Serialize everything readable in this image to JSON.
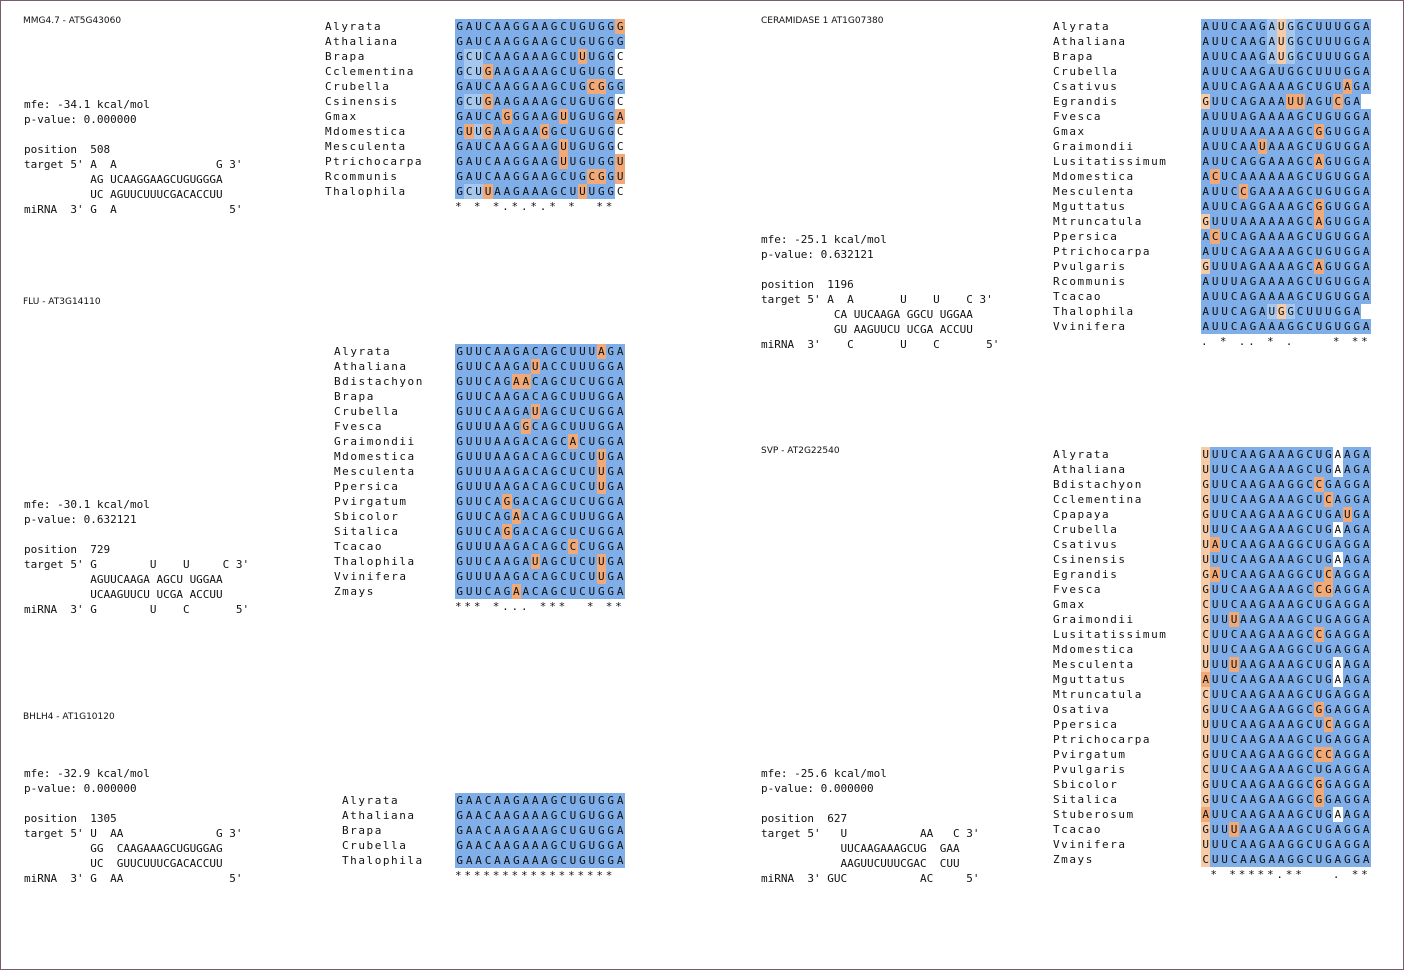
{
  "palette": {
    "b1": "#7faee8",
    "b2": "#a6c8ee",
    "b3": "#c6dcf3",
    "o1": "#f1a978",
    "o2": "#f6cba8",
    "o3": "#fbe3cd",
    "w": "#ffffff"
  },
  "panels": [
    {
      "id": "mmg",
      "title": "MMG4.7 - AT5G43060",
      "info": [
        "mfe: -34.1 kcal/mol",
        "p-value: 0.000000",
        "",
        "position  508",
        "target 5' A  A               G 3'",
        "          AG UCAAGGAAGCUGUGGGA",
        "          UC AGUUCUUUCGACACCUU",
        "miRNA  3' G  A                 5'"
      ],
      "alignment": {
        "rows": [
          {
            "name": "Alyrata",
            "seq": "GAUCAAGGAAGCUGUGGG",
            "col": "bbbbbbbbbbbbbbbbbO"
          },
          {
            "name": "Athaliana",
            "seq": "GAUCAAGGAAGCUGUGGG",
            "col": "bbbbbbbbbbbbbbbbbb"
          },
          {
            "name": "Brapa",
            "seq": "GCUCAAGAAAGCUUUGGC",
            "col": "bxxbbbbbbbbbbObbbw"
          },
          {
            "name": "Cclementina",
            "seq": "GCUGAAGAAAGCUGUGGC",
            "col": "bxxObbbbbbbbbbbbbw"
          },
          {
            "name": "Crubella",
            "seq": "GAUCAAGGAAGCUGCGGG",
            "col": "bbbbbbbbbbbbbbOObb"
          },
          {
            "name": "Csinensis",
            "seq": "GCUGAAGAAAGCUGUGGC",
            "col": "bxxObbbbbbbbbbbbbw"
          },
          {
            "name": "Gmax",
            "seq": "GAUCAGGGAAGUUGUGGA",
            "col": "bbbbbObbbbbObbbbbO"
          },
          {
            "name": "Mdomestica",
            "seq": "GUUGAAGAAGGCUGUGGC",
            "col": "bOxObbbbbObbbbbbbw"
          },
          {
            "name": "Mesculenta",
            "seq": "GAUCAAGGAAGUUGUGGC",
            "col": "bbbbbbbbbbbObbbbbw"
          },
          {
            "name": "Ptrichocarpa",
            "seq": "GAUCAAGGAAGUUGUGGU",
            "col": "bbbbbbbbbbbObbbbbO"
          },
          {
            "name": "Rcommunis",
            "seq": "GAUCAAGGAAGCUGCGGU",
            "col": "bbbbbbbbbbbbbbOObO"
          },
          {
            "name": "Thalophila",
            "seq": "GCUUAAGAAAGCUUUGGC",
            "col": "bxxObbbbbbbbbObbbw"
          }
        ],
        "consensus": "* * *.*.*.* *  **"
      }
    },
    {
      "id": "flu",
      "title": "FLU - AT3G14110",
      "info": [
        "mfe: -30.1 kcal/mol",
        "p-value: 0.632121",
        "",
        "position  729",
        "target 5' G        U    U     C 3'",
        "          AGUUCAAGA AGCU UGGAA",
        "          UCAAGUUCU UCGA ACCUU",
        "miRNA  3' G        U    C       5'"
      ],
      "alignment": {
        "rows": [
          {
            "name": "Alyrata",
            "seq": "GUUCAAGACAGCUUUAGA",
            "col": "bbbbbbbbbbbbbbbObb"
          },
          {
            "name": "Athaliana",
            "seq": "GUUCAAGAUACCUUUGGA",
            "col": "bbbbbbbbObbbbbbbbb"
          },
          {
            "name": "Bdistachyon",
            "seq": "GUUCAGAACAGCUCUGGA",
            "col": "bbbbbbOObbbbbbbbbb"
          },
          {
            "name": "Brapa",
            "seq": "GUUCAAGACAGCUUUGGA",
            "col": "bbbbbbbbbbbbbbbbbb"
          },
          {
            "name": "Crubella",
            "seq": "GUUCAAGAUAGCUCUGGA",
            "col": "bbbbbbbbObbbbbbbbb"
          },
          {
            "name": "Fvesca",
            "seq": "GUUUAAGGCAGCUUUGGA",
            "col": "bbbbbbbObbbbbbbbbb"
          },
          {
            "name": "Graimondii",
            "seq": "GUUUAAGACAGCACUGGA",
            "col": "bbbbbbbbbbbbObbbbb"
          },
          {
            "name": "Mdomestica",
            "seq": "GUUUAAGACAGCUCUUGA",
            "col": "bbbbbbbbbbbbbbbObb"
          },
          {
            "name": "Mesculenta",
            "seq": "GUUUAAGACAGCUCUUGA",
            "col": "bbbbbbbbbbbbbbbObb"
          },
          {
            "name": "Ppersica",
            "seq": "GUUUAAGACAGCUCUUGA",
            "col": "bbbbbbbbbbbbbbbObb"
          },
          {
            "name": "Pvirgatum",
            "seq": "GUUCAGGACAGCUCUGGA",
            "col": "bbbbbObbbbbbbbbbbb"
          },
          {
            "name": "Sbicolor",
            "seq": "GUUCAGAACAGCUUUGGA",
            "col": "bbbbbbObbbbbbbbbbb"
          },
          {
            "name": "Sitalica",
            "seq": "GUUCAGGACAGCUCUGGA",
            "col": "bbbbbObbbbbbbbbbbb"
          },
          {
            "name": "Tcacao",
            "seq": "GUUUAAGACAGCCCUGGA",
            "col": "bbbbbbbbbbbbObbbbb"
          },
          {
            "name": "Thalophila",
            "seq": "GUUCAAGAUAGCUCUUGA",
            "col": "bbbbbbbbObbbbbbObb"
          },
          {
            "name": "Vvinifera",
            "seq": "GUUUAAGACAGCUCUUGA",
            "col": "bbbbbbbbbbbbbbbObb"
          },
          {
            "name": "Zmays",
            "seq": "GUUCAGAACAGCUCUGGA",
            "col": "bbbbbbObbbbbbbbbbb"
          }
        ],
        "consensus": "*** *... ***  * **"
      }
    },
    {
      "id": "bhlh",
      "title": "BHLH4 - AT1G10120",
      "info": [
        "mfe: -32.9 kcal/mol",
        "p-value: 0.000000",
        "",
        "position  1305",
        "target 5' U  AA              G 3'",
        "          GG  CAAGAAAGCUGUGGAG",
        "          UC  GUUCUUUCGACACCUU",
        "miRNA  3' G  AA                5'"
      ],
      "alignment": {
        "rows": [
          {
            "name": "Alyrata",
            "seq": "GAACAAGAAAGCUGUGGA",
            "col": "bbbbbbbbbbbbbbbbbb"
          },
          {
            "name": "Athaliana",
            "seq": "GAACAAGAAAGCUGUGGA",
            "col": "bbbbbbbbbbbbbbbbbb"
          },
          {
            "name": "Brapa",
            "seq": "GAACAAGAAAGCUGUGGA",
            "col": "bbbbbbbbbbbbbbbbbb"
          },
          {
            "name": "Crubella",
            "seq": "GAACAAGAAAGCUGUGGA",
            "col": "bbbbbbbbbbbbbbbbbb"
          },
          {
            "name": "Thalophila",
            "seq": "GAACAAGAAAGCUGUGGA",
            "col": "bbbbbbbbbbbbbbbbbb"
          }
        ],
        "consensus": "*****************"
      }
    },
    {
      "id": "ceramidase",
      "title": "CERAMIDASE 1 AT1G07380",
      "info": [
        "mfe: -25.1 kcal/mol",
        "p-value: 0.632121",
        "",
        "position  1196",
        "target 5' A  A       U    U    C 3'",
        "           CA UUCAAGA GGCU UGGAA",
        "           GU AAGUUCU UCGA ACCUU",
        "miRNA  3'    C       U    C       5'"
      ],
      "alignment": {
        "rows": [
          {
            "name": "Alyrata",
            "seq": "AUUCAAGAUGGCUUUGGA",
            "col": "bbbbbbbxoxbbbbbbbb"
          },
          {
            "name": "Athaliana",
            "seq": "AUUCAAGAUGGCUUUGGA",
            "col": "bbbbbbbxoxbbbbbbbb"
          },
          {
            "name": "Brapa",
            "seq": "AUUCAAGAUGGCUUUGGA",
            "col": "bbbbbbbxoxbbbbbbbb"
          },
          {
            "name": "Crubella",
            "seq": "AUUCAAGAUGGCUUUGGA",
            "col": "bbbbbbbbbbbbbbbbbb"
          },
          {
            "name": "Csativus",
            "seq": "AUUCAGAAAAGCUGUAGA",
            "col": "bbbbbbbbbbbbbbbObb"
          },
          {
            "name": "Egrandis",
            "seq": "GUUCAGAAAUUAGUCGA",
            "col": "obbbbbbbbOObbbObb"
          },
          {
            "name": "Fvesca",
            "seq": "AUUUAGAAAAGCUGUGGA",
            "col": "bbbbbbbbbbbbbbbbbb"
          },
          {
            "name": "Gmax",
            "seq": "AUUUAAAAAAGCGGUGGA",
            "col": "bbbbbbbbbbbbObbbbb"
          },
          {
            "name": "Graimondii",
            "seq": "AUUCAAUAAAGCUGUGGA",
            "col": "bbbbbbObbbbbbbbbbb"
          },
          {
            "name": "Lusitatissimum",
            "seq": "AUUCAGGAAAGCAGUGGA",
            "col": "bbbbbbbbbbbbObbbbb"
          },
          {
            "name": "Mdomestica",
            "seq": "ACUCAAAAAAGCUGUGGA",
            "col": "bObbbbbbbbbbbbbbbb"
          },
          {
            "name": "Mesculenta",
            "seq": "AUUCCGAAAAGCUGUGGA",
            "col": "bbbbObbbbbbbbbbbbb"
          },
          {
            "name": "Mguttatus",
            "seq": "AUUCAGGAAAGCGGUGGA",
            "col": "bbbbbbbbbbbbObbbbb"
          },
          {
            "name": "Mtruncatula",
            "seq": "GUUUAAAAAAGCAGUGGA",
            "col": "obbbbbbbbbbbObbbbb"
          },
          {
            "name": "Ppersica",
            "seq": "ACUCAGAAAAGCUGUGGA",
            "col": "bObbbbbbbbbbbbbbbb"
          },
          {
            "name": "Ptrichocarpa",
            "seq": "AUUCAGAAAAGCUGUGGA",
            "col": "bbbbbbbbbbbbbbbbbb"
          },
          {
            "name": "Pvulgaris",
            "seq": "GUUUAGAAAAGCAGUGGA",
            "col": "obbbbbbbbbbbObbbbb"
          },
          {
            "name": "Rcommunis",
            "seq": "AUUUAGAAAAGCUGUGGA",
            "col": "bbbbbbbbbbbbbbbbbb"
          },
          {
            "name": "Tcacao",
            "seq": "AUUCAGAAAAGCUGUGGA",
            "col": "bbbbbbbbbbbbbbbbbb"
          },
          {
            "name": "Thalophila",
            "seq": "AUUCAGAUGGCUUUGGA",
            "col": "bbbbbbbxoxbbbbbbb"
          },
          {
            "name": "Vvinifera",
            "seq": "AUUCAGAAAGGCUGUGGA",
            "col": "bbbbbbbbbbbbbbbbbb"
          }
        ],
        "consensus": ". * .. * .    * **"
      }
    },
    {
      "id": "svp",
      "title": "SVP - AT2G22540",
      "info": [
        "mfe: -25.6 kcal/mol",
        "p-value: 0.000000",
        "",
        "position  627",
        "target 5'   U           AA   C 3'",
        "            UUCAAGAAAGCUG  GAA",
        "            AAGUUCUUUCGAC  CUU",
        "miRNA  3' GUC           AC     5'"
      ],
      "alignment": {
        "rows": [
          {
            "name": "Alyrata",
            "seq": "UUUCAAGAAAGCUGAAGA",
            "col": "obbbbbbbbbbbbbwbbb"
          },
          {
            "name": "Athaliana",
            "seq": "UUUCAAGAAAGCUGAAGA",
            "col": "obbbbbbbbbbbbbwbbb"
          },
          {
            "name": "Bdistachyon",
            "seq": "GUUCAAGAAGGCCGAGGA",
            "col": "obbbbbbbbbbbObbbbb"
          },
          {
            "name": "Cclementina",
            "seq": "GUUCAAGAAAGCUCAGGA",
            "col": "obbbbbbbbbbbbObbbb"
          },
          {
            "name": "Cpapaya",
            "seq": "GUUCAAGAAAGCUGAUGA",
            "col": "obbbbbbbbbbbbbbObb"
          },
          {
            "name": "Crubella",
            "seq": "UUUCAAGAAAGCUGAAGA",
            "col": "obbbbbbbbbbbbbwbbb"
          },
          {
            "name": "Csativus",
            "seq": "UAUCAAGAAGGCUGAGGA",
            "col": "oObbbbbbbbbbbbbbbb"
          },
          {
            "name": "Csinensis",
            "seq": "UUUCAAGAAAGCUGAAGA",
            "col": "obbbbbbbbbbbbbwbbb"
          },
          {
            "name": "Egrandis",
            "seq": "GAUCAAGAAGGCUCAGGA",
            "col": "oObbbbbbbbbbbObbbb"
          },
          {
            "name": "Fvesca",
            "seq": "GUUCAAGAAAGCCGAGGA",
            "col": "obbbbbbbbbbbOObbbb"
          },
          {
            "name": "Gmax",
            "seq": "CUUCAAGAAAGCUGAGGA",
            "col": "obbbbbbbbbbbbbbbbb"
          },
          {
            "name": "Graimondii",
            "seq": "GUUUAAGAAAGCUGAGGA",
            "col": "obbObbbbbbbbbbbbbb"
          },
          {
            "name": "Lusitatissimum",
            "seq": "CUUCAAGAAAGCCGAGGA",
            "col": "obbbbbbbbbbbObbbbb"
          },
          {
            "name": "Mdomestica",
            "seq": "UUUCAAGAAGGCUGAGGA",
            "col": "obbbbbbbbbbbbbbbbb"
          },
          {
            "name": "Mesculenta",
            "seq": "UUUUAAGAAAGCUGAAGA",
            "col": "obbObbbbbbbbbbwbbb"
          },
          {
            "name": "Mguttatus",
            "seq": "AUUCAAGAAAGCUGAAGA",
            "col": "Obbbbbbbbbbbbbwbbb"
          },
          {
            "name": "Mtruncatula",
            "seq": "CUUCAAGAAAGCUGAGGA",
            "col": "obbbbbbbbbbbbbbbbb"
          },
          {
            "name": "Osativa",
            "seq": "GUUCAAGAAGGCGGAGGA",
            "col": "obbbbbbbbbbbObbbbb"
          },
          {
            "name": "Ppersica",
            "seq": "UUUCAAGAAAGCUCAGGA",
            "col": "obbbbbbbbbbbbObbbb"
          },
          {
            "name": "Ptrichocarpa",
            "seq": "UUUCAAGAAAGCUGAGGA",
            "col": "obbbbbbbbbbbbbbbbb"
          },
          {
            "name": "Pvirgatum",
            "seq": "GUUCAAGAAGGCCCAGGA",
            "col": "obbbbbbbbbbbOObbbb"
          },
          {
            "name": "Pvulgaris",
            "seq": "CUUCAAGAAAGCUGAGGA",
            "col": "obbbbbbbbbbbbbbbbb"
          },
          {
            "name": "Sbicolor",
            "seq": "GUUCAAGAAGGCGGAGGA",
            "col": "obbbbbbbbbbbObbbbb"
          },
          {
            "name": "Sitalica",
            "seq": "GUUCAAGAAGGCGGAGGA",
            "col": "obbbbbbbbbbbObbbbb"
          },
          {
            "name": "Stuberosum",
            "seq": "AUUCAAGAAAGCUGAAGA",
            "col": "Obbbbbbbbbbbbbwbbb"
          },
          {
            "name": "Tcacao",
            "seq": "GUUUAAGAAAGCUGAGGA",
            "col": "obbObbbbbbbbbbbbbb"
          },
          {
            "name": "Vvinifera",
            "seq": "UUUCAAGAAGGCUGAGGA",
            "col": "obbbbbbbbbbbbbbbbb"
          },
          {
            "name": "Zmays",
            "seq": "CUUCAAGAAGGCUGAGGA",
            "col": "obbbbbbbbbbbbbbbbb"
          }
        ],
        "consensus": " * *****.**   . **"
      }
    }
  ]
}
